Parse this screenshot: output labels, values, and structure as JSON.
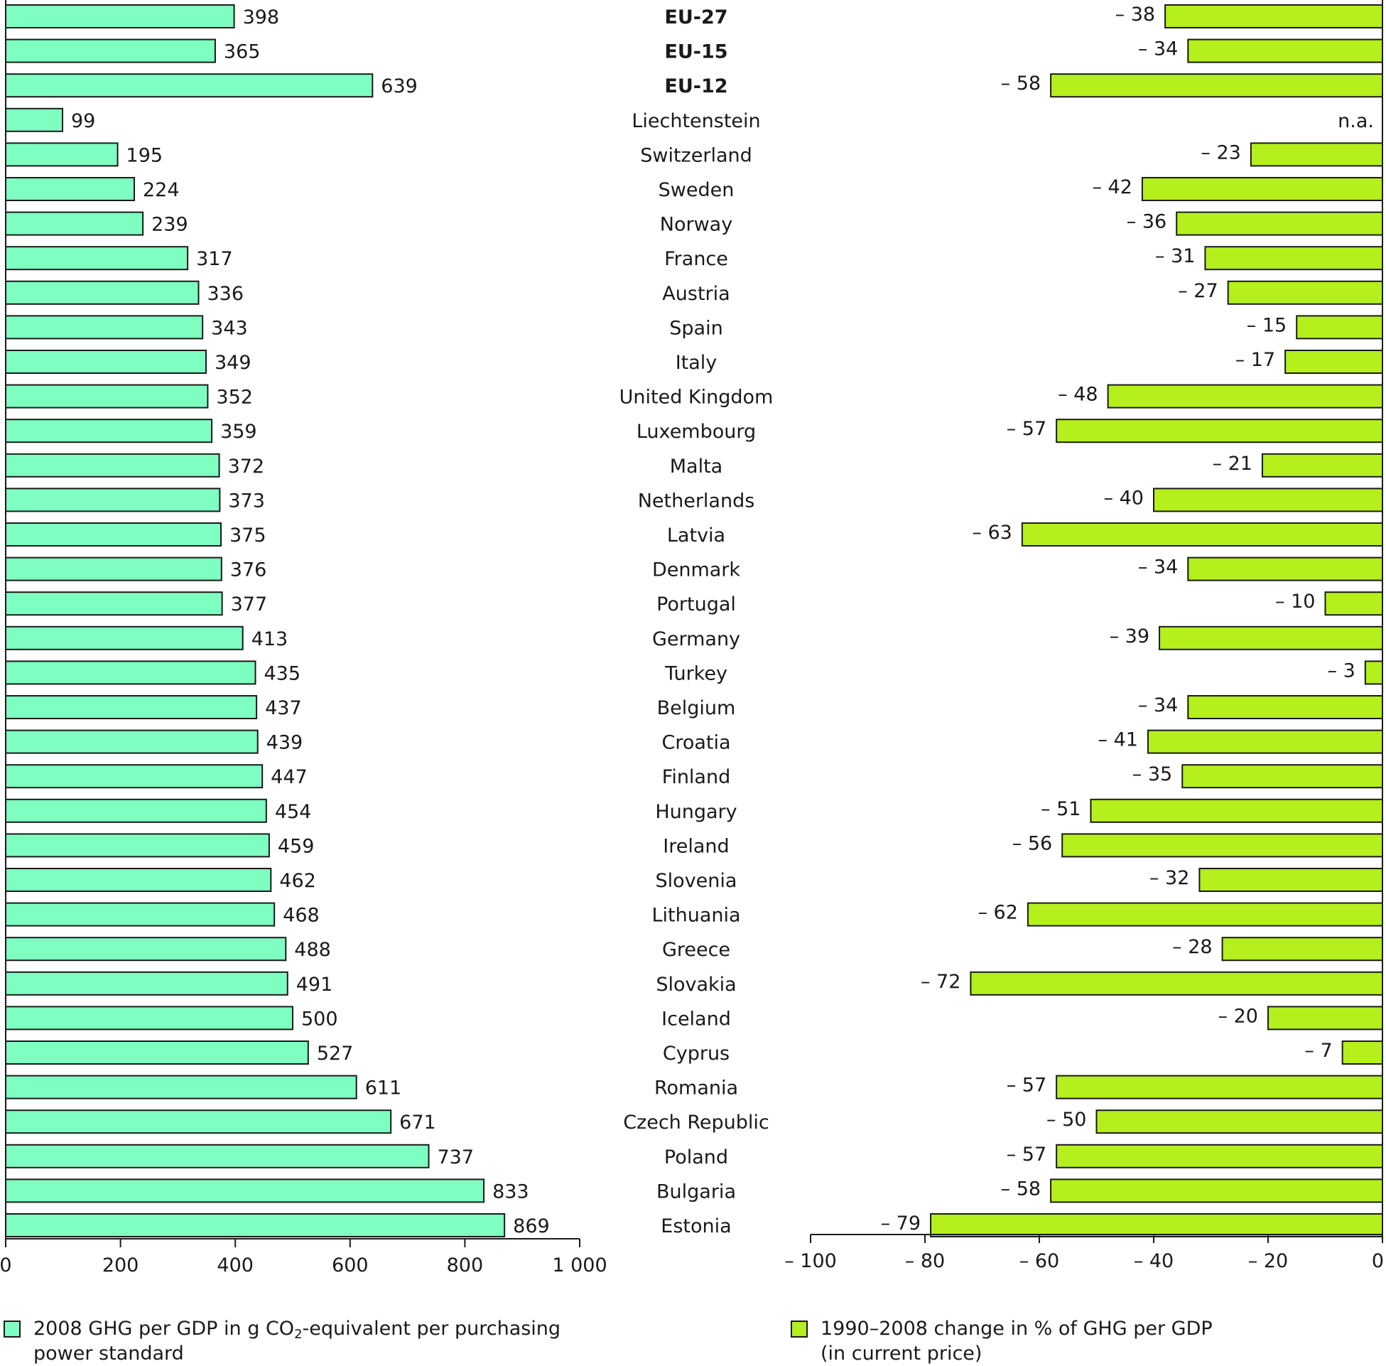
{
  "colors": {
    "left_bar": "#7effc1",
    "right_bar": "#b5ef1c",
    "outline": "#1a1a1a",
    "text": "#1a1a1a"
  },
  "chart_data": [
    {
      "type": "bar",
      "orientation": "horizontal",
      "categories": [
        "EU-27",
        "EU-15",
        "EU-12",
        "Liechtenstein",
        "Switzerland",
        "Sweden",
        "Norway",
        "France",
        "Austria",
        "Spain",
        "Italy",
        "United Kingdom",
        "Luxembourg",
        "Malta",
        "Netherlands",
        "Latvia",
        "Denmark",
        "Portugal",
        "Germany",
        "Turkey",
        "Belgium",
        "Croatia",
        "Finland",
        "Hungary",
        "Ireland",
        "Slovenia",
        "Lithuania",
        "Greece",
        "Slovakia",
        "Iceland",
        "Cyprus",
        "Romania",
        "Czech Republic",
        "Poland",
        "Bulgaria",
        "Estonia"
      ],
      "bold_categories": [
        "EU-27",
        "EU-15",
        "EU-12"
      ],
      "values": [
        398,
        365,
        639,
        99,
        195,
        224,
        239,
        317,
        336,
        343,
        349,
        352,
        359,
        372,
        373,
        375,
        376,
        377,
        413,
        435,
        437,
        439,
        447,
        454,
        459,
        462,
        468,
        488,
        491,
        500,
        527,
        611,
        671,
        737,
        833,
        869
      ],
      "value_labels": [
        "398",
        "365",
        "639",
        "99",
        "195",
        "224",
        "239",
        "317",
        "336",
        "343",
        "349",
        "352",
        "359",
        "372",
        "373",
        "375",
        "376",
        "377",
        "413",
        "435",
        "437",
        "439",
        "447",
        "454",
        "459",
        "462",
        "468",
        "488",
        "491",
        "500",
        "527",
        "611",
        "671",
        "737",
        "833",
        "869"
      ],
      "xlim": [
        0,
        1000
      ],
      "xticks": [
        0,
        200,
        400,
        600,
        800,
        1000
      ],
      "xtick_labels": [
        "0",
        "200",
        "400",
        "600",
        "800",
        "1 000"
      ],
      "grid": false,
      "legend": {
        "position": "bottom-left",
        "label_parts": [
          "2008 GHG per GDP in g CO",
          "2",
          "-equivalent per purchasing",
          "power standard"
        ]
      }
    },
    {
      "type": "bar",
      "orientation": "horizontal",
      "categories": [
        "EU-27",
        "EU-15",
        "EU-12",
        "Liechtenstein",
        "Switzerland",
        "Sweden",
        "Norway",
        "France",
        "Austria",
        "Spain",
        "Italy",
        "United Kingdom",
        "Luxembourg",
        "Malta",
        "Netherlands",
        "Latvia",
        "Denmark",
        "Portugal",
        "Germany",
        "Turkey",
        "Belgium",
        "Croatia",
        "Finland",
        "Hungary",
        "Ireland",
        "Slovenia",
        "Lithuania",
        "Greece",
        "Slovakia",
        "Iceland",
        "Cyprus",
        "Romania",
        "Czech Republic",
        "Poland",
        "Bulgaria",
        "Estonia"
      ],
      "values": [
        -38,
        -34,
        -58,
        null,
        -23,
        -42,
        -36,
        -31,
        -27,
        -15,
        -17,
        -48,
        -57,
        -21,
        -40,
        -63,
        -34,
        -10,
        -39,
        -3,
        -34,
        -41,
        -35,
        -51,
        -56,
        -32,
        -62,
        -28,
        -72,
        -20,
        -7,
        -57,
        -50,
        -57,
        -58,
        -79
      ],
      "value_labels": [
        "– 38",
        "– 34",
        "– 58",
        "n.a.",
        "– 23",
        "– 42",
        "– 36",
        "– 31",
        "– 27",
        "– 15",
        "– 17",
        "– 48",
        "– 57",
        "– 21",
        "– 40",
        "– 63",
        "– 34",
        "– 10",
        "– 39",
        "– 3",
        "– 34",
        "– 41",
        "– 35",
        "– 51",
        "– 56",
        "– 32",
        "– 62",
        "– 28",
        "– 72",
        "– 20",
        "– 7",
        "– 57",
        "– 50",
        "– 57",
        "– 58",
        "– 79"
      ],
      "xlim": [
        -100,
        0
      ],
      "xticks": [
        -100,
        -80,
        -60,
        -40,
        -20,
        0
      ],
      "xtick_labels": [
        "– 100",
        "– 80",
        "– 60",
        "– 40",
        "– 20",
        "0"
      ],
      "grid": false,
      "legend": {
        "position": "bottom-right",
        "label_lines": [
          "1990–2008 change in % of GHG per GDP",
          "(in current price)"
        ]
      }
    }
  ]
}
